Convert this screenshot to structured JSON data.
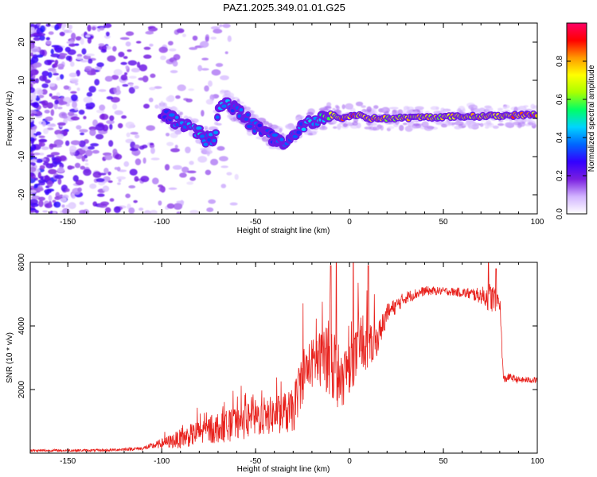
{
  "figure": {
    "title": "PAZ1.2025.349.01.01.G25"
  },
  "chart_data": [
    {
      "type": "heatmap",
      "id": "spectrogram",
      "xlabel": "Height of straight line (km)",
      "ylabel": "Frequency (Hz)",
      "xlim": [
        -170,
        100
      ],
      "ylim": [
        -25,
        25
      ],
      "xticks": [
        -150,
        -100,
        -50,
        0,
        50,
        100
      ],
      "yticks": [
        -20,
        -10,
        0,
        10,
        20
      ],
      "colorbar": {
        "label": "Normalized spectral amplitude",
        "range": [
          0,
          1
        ],
        "ticks": [
          0.0,
          0.2,
          0.4,
          0.6,
          0.8
        ],
        "colormap": [
          "#ffffff",
          "#d2b4ff",
          "#7a1fe0",
          "#3300ff",
          "#0066ff",
          "#00d4ff",
          "#00ff66",
          "#aaff00",
          "#ffff00",
          "#ff9900",
          "#ff0000",
          "#ff0066"
        ]
      },
      "ridge": {
        "x": [
          -100,
          -95,
          -90,
          -85,
          -80,
          -75,
          -72,
          -68,
          -65,
          -60,
          -55,
          -50,
          -45,
          -40,
          -35,
          -30,
          -25,
          -20,
          -15,
          -10,
          -5,
          0,
          5,
          10,
          20,
          40,
          60,
          80,
          100
        ],
        "y": [
          1,
          0,
          -1,
          -3,
          -4,
          -6,
          -5,
          5,
          4,
          2,
          0,
          -2,
          -4,
          -5,
          -6,
          -4,
          -2,
          -1,
          0,
          1,
          0,
          0.5,
          1,
          0,
          0,
          0.3,
          0.5,
          0.7,
          1
        ],
        "amplitude": [
          0.25,
          0.35,
          0.4,
          0.45,
          0.45,
          0.4,
          0.35,
          0.45,
          0.4,
          0.35,
          0.35,
          0.35,
          0.35,
          0.35,
          0.35,
          0.35,
          0.4,
          0.45,
          0.5,
          0.7,
          0.8,
          0.9,
          0.85,
          0.8,
          0.75,
          0.75,
          0.75,
          0.8,
          0.85
        ]
      }
    },
    {
      "type": "line",
      "id": "snr",
      "xlabel": "Height of straight line (km)",
      "ylabel": "SNR (10 * v/v)",
      "xlim": [
        -170,
        100
      ],
      "ylim": [
        0,
        6000
      ],
      "xticks": [
        -150,
        -100,
        -50,
        0,
        50,
        100
      ],
      "yticks": [
        2000,
        4000,
        6000
      ],
      "color": "#e8211c",
      "envelope": {
        "x": [
          -170,
          -130,
          -110,
          -100,
          -90,
          -80,
          -70,
          -60,
          -50,
          -40,
          -30,
          -25,
          -20,
          -15,
          -10,
          -5,
          0,
          5,
          10,
          15,
          20,
          30,
          40,
          50,
          60,
          70,
          75,
          80,
          82,
          85,
          90,
          100
        ],
        "y": [
          80,
          90,
          150,
          300,
          450,
          650,
          800,
          900,
          1100,
          1200,
          1300,
          2500,
          2800,
          3000,
          3200,
          2200,
          2800,
          3200,
          3300,
          3600,
          4400,
          4900,
          5100,
          5100,
          5050,
          4950,
          4900,
          4800,
          2300,
          2400,
          2300,
          2300
        ],
        "noise": [
          40,
          40,
          60,
          150,
          300,
          400,
          500,
          500,
          600,
          600,
          700,
          900,
          800,
          900,
          1500,
          900,
          900,
          800,
          700,
          500,
          300,
          200,
          150,
          120,
          150,
          250,
          500,
          300,
          150,
          120,
          100,
          100
        ]
      },
      "spikes": [
        {
          "x": -10,
          "y": 5900
        },
        {
          "x": -7,
          "y": 6000
        },
        {
          "x": 2,
          "y": 6000
        },
        {
          "x": 10,
          "y": 5900
        },
        {
          "x": 74,
          "y": 6000
        },
        {
          "x": 78,
          "y": 5800
        }
      ]
    }
  ]
}
